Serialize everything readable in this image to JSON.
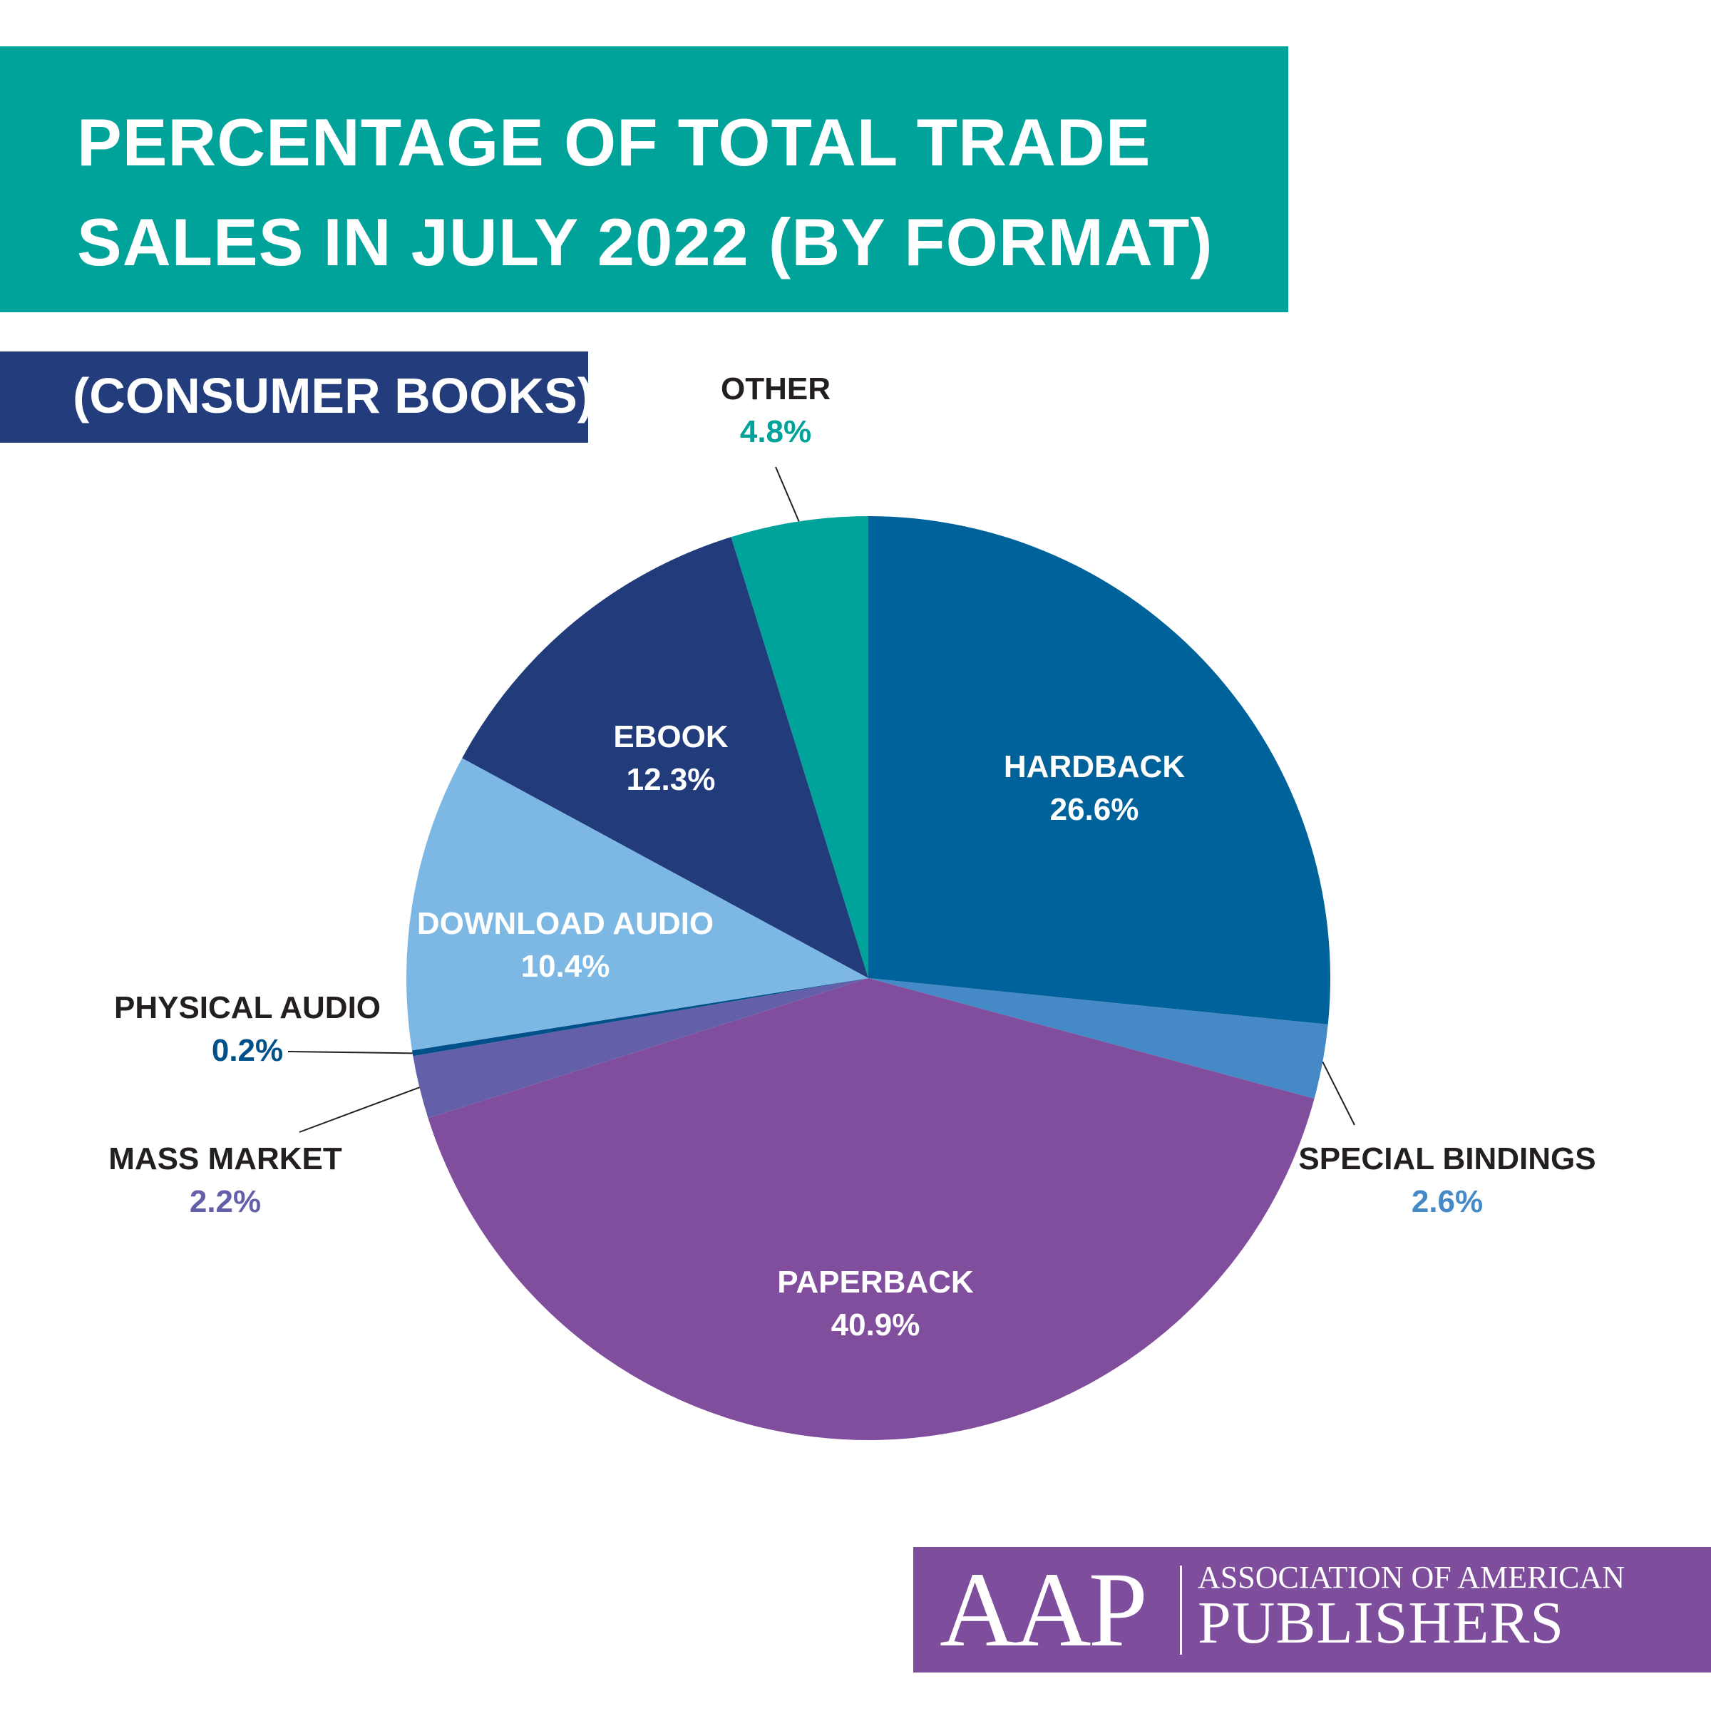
{
  "header": {
    "title": "PERCENTAGE OF TOTAL TRADE SALES IN JULY 2022 (BY FORMAT)",
    "subtitle": "(CONSUMER BOOKS)"
  },
  "colors": {
    "header_band": "#00A39A",
    "subtitle_band": "#223C7C",
    "logo_band": "#7E4D9C"
  },
  "chart_data": {
    "type": "pie",
    "title": "PERCENTAGE OF TOTAL TRADE SALES IN JULY 2022 (BY FORMAT)",
    "subtitle": "(CONSUMER BOOKS)",
    "start": "12 o'clock",
    "direction": "clockwise",
    "slices": [
      {
        "name": "HARDBACK",
        "value": 26.6,
        "label": "26.6%",
        "color": "#00629A"
      },
      {
        "name": "SPECIAL BINDINGS",
        "value": 2.6,
        "label": "2.6%",
        "color": "#4589C7"
      },
      {
        "name": "PAPERBACK",
        "value": 40.9,
        "label": "40.9%",
        "color": "#804E9D"
      },
      {
        "name": "MASS MARKET",
        "value": 2.2,
        "label": "2.2%",
        "color": "#6360A9"
      },
      {
        "name": "PHYSICAL AUDIO",
        "value": 0.2,
        "label": "0.2%",
        "color": "#00508A"
      },
      {
        "name": "DOWNLOAD AUDIO",
        "value": 10.4,
        "label": "10.4%",
        "color": "#7DB8E4"
      },
      {
        "name": "EBOOK",
        "value": 12.3,
        "label": "12.3%",
        "color": "#213B7B"
      },
      {
        "name": "OTHER",
        "value": 4.8,
        "label": "4.8%",
        "color": "#00A39A"
      }
    ]
  },
  "logo": {
    "abbr": "AAP",
    "line1": "ASSOCIATION OF AMERICAN",
    "line2": "PUBLISHERS"
  }
}
